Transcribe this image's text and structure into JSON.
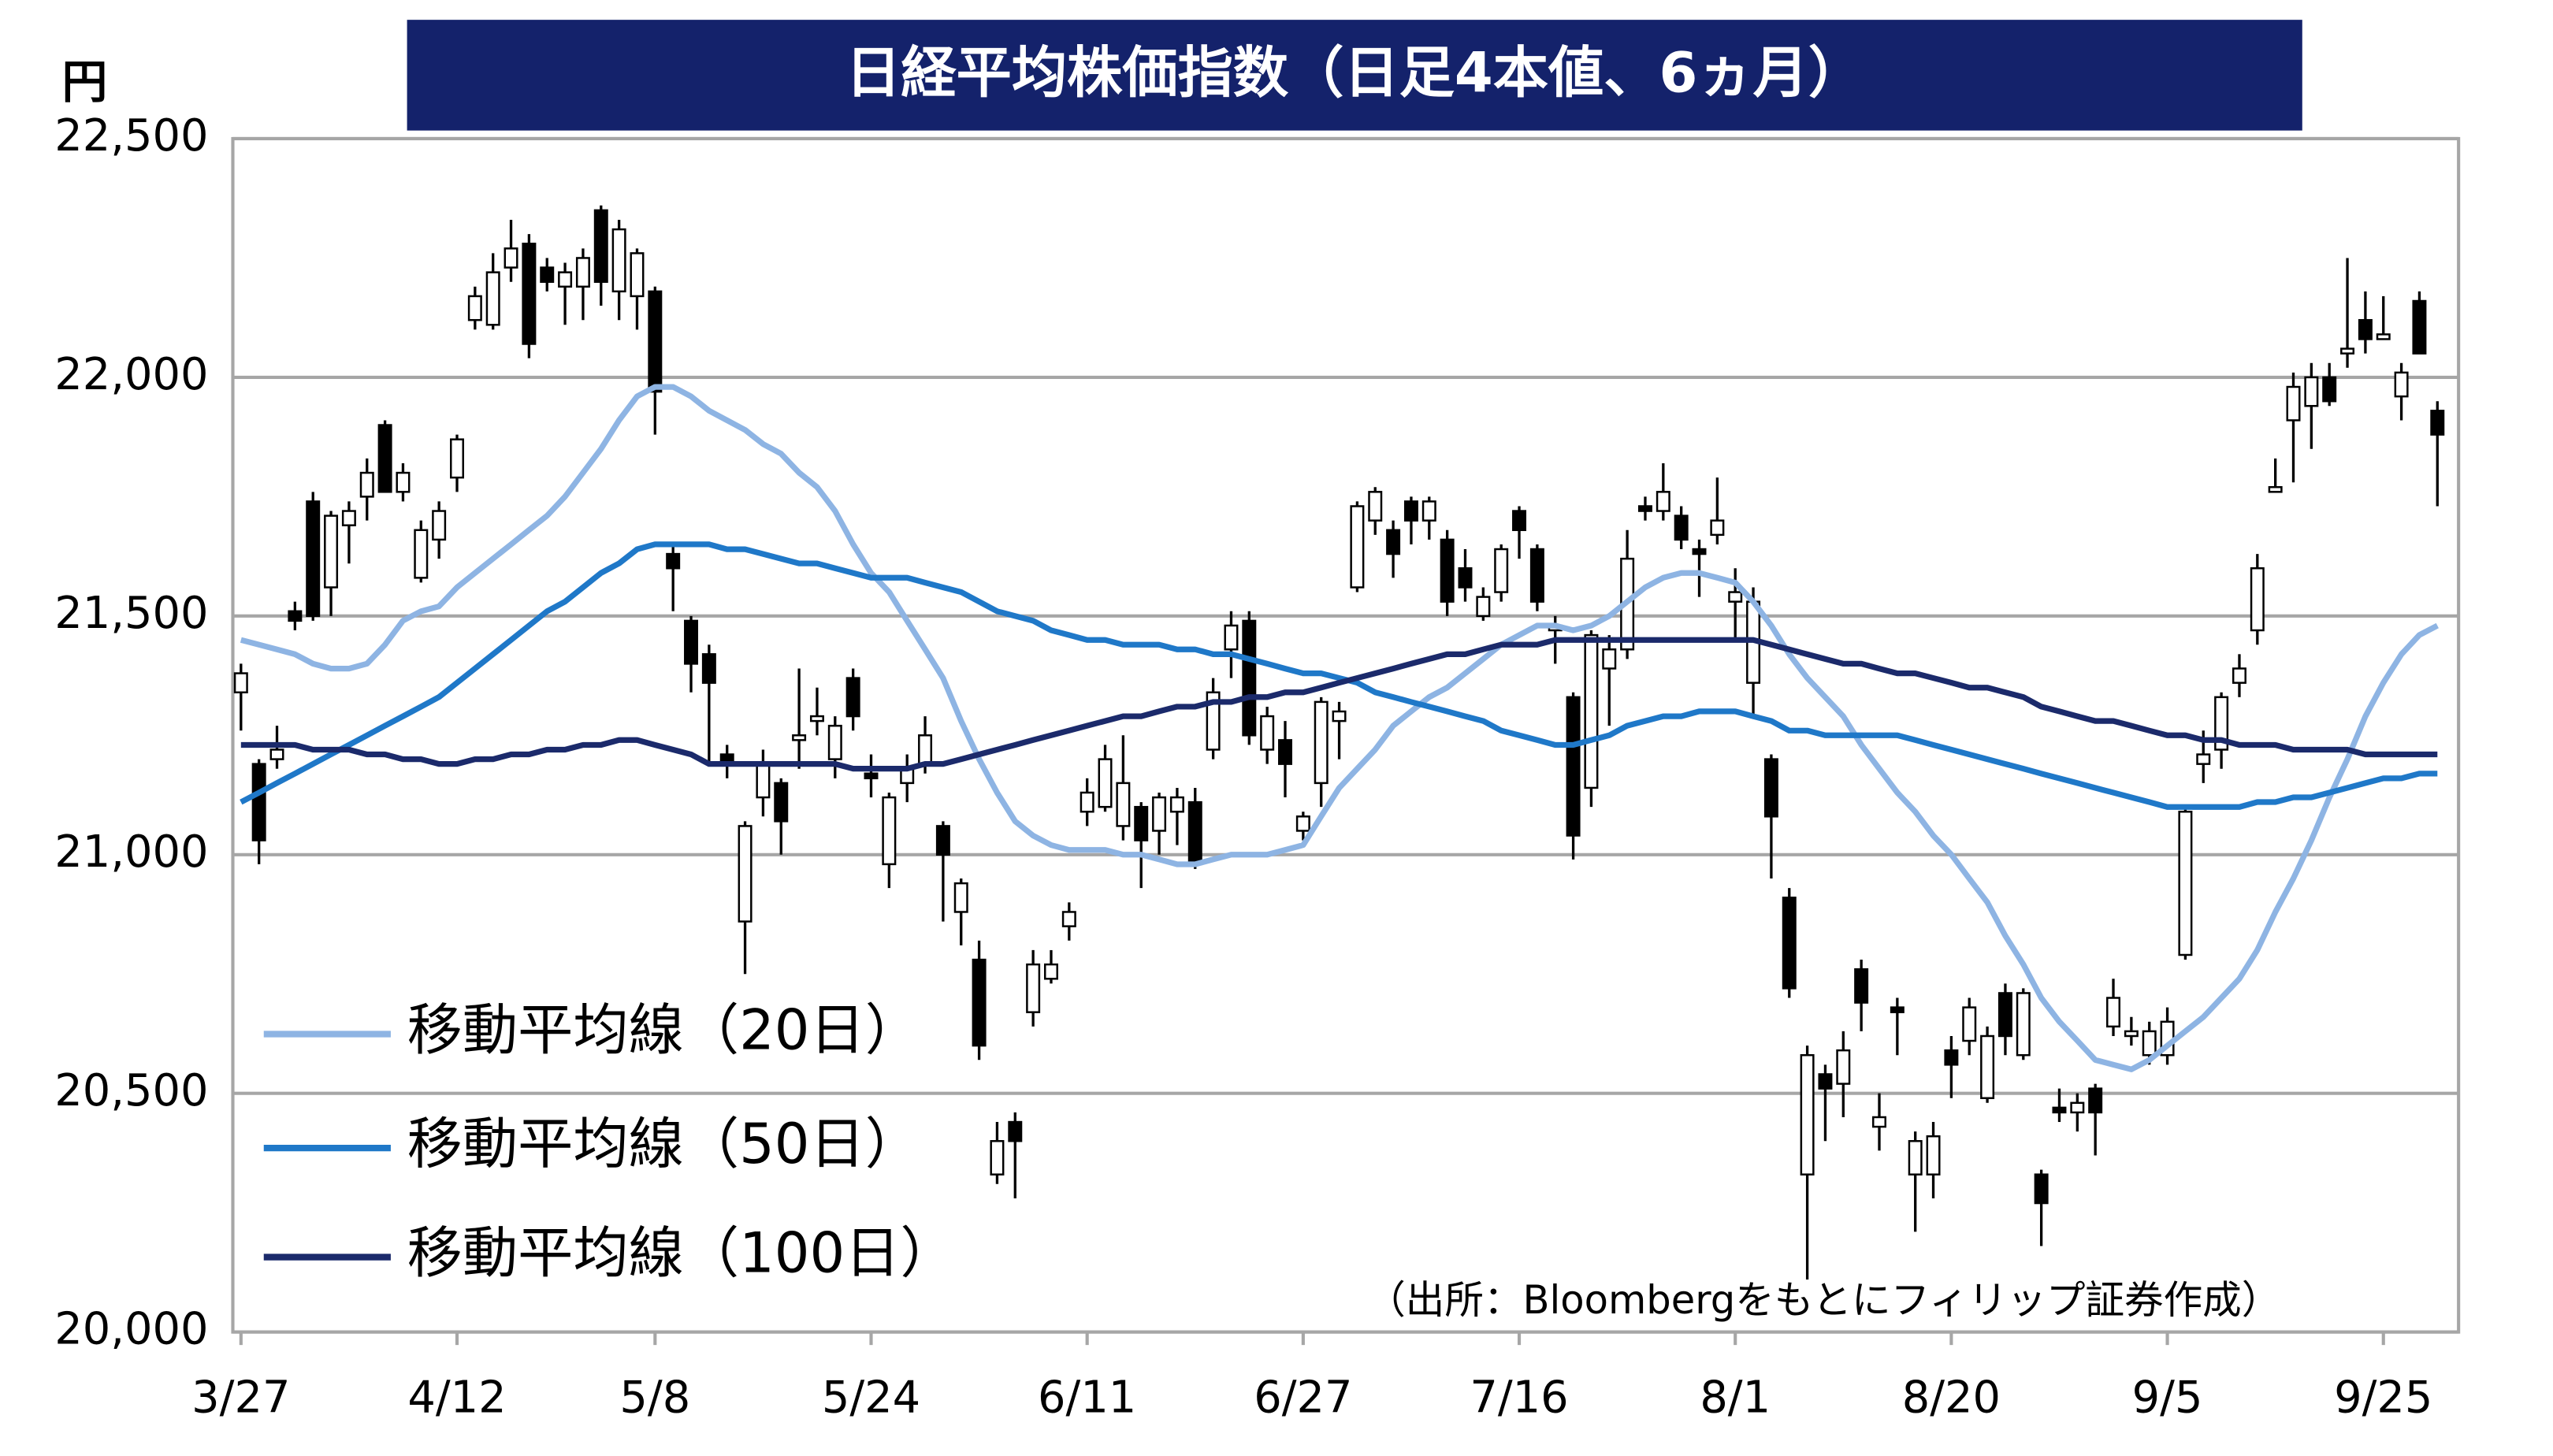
{
  "chart_data": {
    "type": "candlestick",
    "title": "日経平均株価指数（日足4本値、6ヵ月）",
    "y_unit": "円",
    "source": "（出所：Bloombergをもとにフィリップ証券作成）",
    "categories": [
      "3/27",
      null,
      null,
      null,
      null,
      null,
      null,
      null,
      null,
      null,
      null,
      null,
      "4/12",
      null,
      null,
      null,
      null,
      null,
      null,
      null,
      null,
      null,
      null,
      "5/8",
      null,
      null,
      null,
      null,
      null,
      null,
      null,
      null,
      null,
      null,
      null,
      "5/24",
      null,
      null,
      null,
      null,
      null,
      null,
      null,
      null,
      null,
      null,
      null,
      "6/11",
      null,
      null,
      null,
      null,
      null,
      null,
      null,
      null,
      null,
      null,
      null,
      "6/27",
      null,
      null,
      null,
      null,
      null,
      null,
      null,
      null,
      null,
      null,
      null,
      "7/16",
      null,
      null,
      null,
      null,
      null,
      null,
      null,
      null,
      null,
      null,
      null,
      "8/1",
      null,
      null,
      null,
      null,
      null,
      null,
      null,
      null,
      null,
      null,
      null,
      "8/20",
      null,
      null,
      null,
      null,
      null,
      null,
      null,
      null,
      null,
      null,
      null,
      "9/5",
      null,
      null,
      null,
      null,
      null,
      null,
      null,
      null,
      null,
      null,
      null,
      "9/25",
      null,
      null,
      null
    ],
    "open": [
      21340,
      21190,
      21200,
      21510,
      21740,
      21560,
      21690,
      21750,
      21900,
      21760,
      21580,
      21660,
      21790,
      22120,
      22110,
      22230,
      22280,
      22230,
      22190,
      22190,
      22350,
      22180,
      22170,
      22180,
      21630,
      21490,
      21420,
      21210,
      20860,
      21120,
      21150,
      21240,
      21280,
      21200,
      21370,
      21170,
      20980,
      21150,
      21190,
      21060,
      20880,
      20780,
      20330,
      20440,
      20670,
      20740,
      20850,
      21090,
      21100,
      21060,
      21100,
      21050,
      21090,
      21110,
      21220,
      21430,
      21490,
      21220,
      21240,
      21050,
      21150,
      21280,
      21560,
      21700,
      21680,
      21740,
      21700,
      21660,
      21600,
      21500,
      21550,
      21720,
      21640,
      21470,
      21330,
      21140,
      21390,
      21430,
      21730,
      21720,
      21710,
      21640,
      21670,
      21530,
      21360,
      21200,
      20910,
      20330,
      20540,
      20520,
      20760,
      20430,
      20680,
      20330,
      20330,
      20590,
      20610,
      20490,
      20710,
      20580,
      20330,
      20470,
      20460,
      20510,
      20640,
      20620,
      20580,
      20580,
      20790,
      21190,
      21220,
      21360,
      21470,
      21760,
      21910,
      21940,
      22000,
      22050,
      22120,
      22080,
      21960,
      22160,
      21930
    ],
    "high": [
      21400,
      21200,
      21270,
      21530,
      21760,
      21720,
      21740,
      21830,
      21910,
      21820,
      21700,
      21740,
      21880,
      22190,
      22260,
      22330,
      22300,
      22250,
      22240,
      22270,
      22360,
      22330,
      22270,
      22190,
      21650,
      21500,
      21440,
      21230,
      21070,
      21220,
      21160,
      21390,
      21350,
      21290,
      21390,
      21210,
      21130,
      21210,
      21290,
      21070,
      20950,
      20820,
      20440,
      20460,
      20800,
      20800,
      20900,
      21160,
      21230,
      21250,
      21110,
      21130,
      21140,
      21140,
      21370,
      21510,
      21510,
      21310,
      21280,
      21090,
      21330,
      21320,
      21740,
      21770,
      21700,
      21750,
      21750,
      21680,
      21640,
      21560,
      21650,
      21730,
      21650,
      21500,
      21340,
      21470,
      21460,
      21680,
      21750,
      21820,
      21730,
      21660,
      21790,
      21600,
      21560,
      21210,
      20930,
      20600,
      20560,
      20630,
      20780,
      20500,
      20700,
      20420,
      20440,
      20620,
      20700,
      20640,
      20730,
      20720,
      20340,
      20510,
      20500,
      20520,
      20740,
      20660,
      20650,
      20680,
      21100,
      21260,
      21340,
      21420,
      21630,
      21830,
      22010,
      22030,
      22030,
      22250,
      22180,
      22170,
      22030,
      22180,
      21950
    ],
    "low": [
      21260,
      20980,
      21180,
      21470,
      21490,
      21500,
      21610,
      21700,
      21760,
      21740,
      21570,
      21620,
      21760,
      22100,
      22100,
      22200,
      22040,
      22180,
      22110,
      22120,
      22150,
      22120,
      22100,
      21880,
      21510,
      21340,
      21190,
      21160,
      20750,
      21080,
      21000,
      21180,
      21250,
      21160,
      21260,
      21120,
      20930,
      21110,
      21170,
      20860,
      20810,
      20570,
      20310,
      20280,
      20640,
      20730,
      20820,
      21060,
      21090,
      21030,
      20930,
      21000,
      21020,
      20970,
      21200,
      21370,
      21230,
      21190,
      21120,
      21030,
      21100,
      21200,
      21550,
      21670,
      21580,
      21650,
      21660,
      21500,
      21530,
      21490,
      21530,
      21620,
      21510,
      21400,
      20990,
      21100,
      21270,
      21410,
      21700,
      21700,
      21640,
      21540,
      21650,
      21450,
      21290,
      20950,
      20700,
      20110,
      20400,
      20450,
      20630,
      20380,
      20580,
      20210,
      20280,
      20490,
      20580,
      20480,
      20580,
      20570,
      20180,
      20440,
      20420,
      20370,
      20620,
      20600,
      20560,
      20560,
      20780,
      21150,
      21180,
      21330,
      21440,
      21760,
      21780,
      21850,
      21940,
      22020,
      22050,
      22080,
      21910,
      22050,
      21730
    ],
    "close": [
      21380,
      21030,
      21220,
      21490,
      21500,
      21710,
      21720,
      21800,
      21760,
      21800,
      21680,
      21720,
      21870,
      22170,
      22220,
      22270,
      22070,
      22200,
      22220,
      22250,
      22200,
      22310,
      22260,
      21970,
      21600,
      21400,
      21360,
      21190,
      21060,
      21190,
      21070,
      21250,
      21290,
      21270,
      21290,
      21160,
      21120,
      21180,
      21250,
      21000,
      20940,
      20600,
      20400,
      20400,
      20770,
      20770,
      20880,
      21130,
      21200,
      21150,
      21030,
      21120,
      21120,
      20980,
      21340,
      21480,
      21250,
      21290,
      21190,
      21080,
      21320,
      21300,
      21730,
      21760,
      21630,
      21700,
      21740,
      21530,
      21560,
      21540,
      21640,
      21680,
      21530,
      21480,
      21040,
      21460,
      21430,
      21620,
      21720,
      21760,
      21660,
      21630,
      21700,
      21550,
      21530,
      21080,
      20720,
      20580,
      20510,
      20590,
      20690,
      20450,
      20670,
      20400,
      20410,
      20560,
      20680,
      20620,
      20620,
      20710,
      20270,
      20460,
      20480,
      20460,
      20700,
      20630,
      20630,
      20650,
      21090,
      21210,
      21330,
      21390,
      21600,
      21770,
      21980,
      22000,
      21950,
      22060,
      22080,
      22090,
      22010,
      22050,
      21880
    ],
    "up_color": "#ffffff",
    "down_color": "#000000",
    "series": [
      {
        "name": "移動平均線（20日）",
        "color": "#8eb4e3",
        "values": [
          21450,
          21440,
          21430,
          21420,
          21400,
          21390,
          21390,
          21400,
          21440,
          21490,
          21510,
          21520,
          21560,
          21590,
          21620,
          21650,
          21680,
          21710,
          21750,
          21800,
          21850,
          21910,
          21960,
          21980,
          21980,
          21960,
          21930,
          21910,
          21890,
          21860,
          21840,
          21800,
          21770,
          21720,
          21650,
          21590,
          21550,
          21490,
          21430,
          21370,
          21280,
          21200,
          21130,
          21070,
          21040,
          21020,
          21010,
          21010,
          21010,
          21000,
          21000,
          20990,
          20980,
          20980,
          20990,
          21000,
          21000,
          21000,
          21010,
          21020,
          21080,
          21140,
          21180,
          21220,
          21270,
          21300,
          21330,
          21350,
          21380,
          21410,
          21440,
          21460,
          21480,
          21480,
          21470,
          21480,
          21500,
          21530,
          21560,
          21580,
          21590,
          21590,
          21580,
          21570,
          21530,
          21480,
          21420,
          21370,
          21330,
          21290,
          21230,
          21180,
          21130,
          21090,
          21040,
          21000,
          20950,
          20900,
          20830,
          20770,
          20700,
          20650,
          20610,
          20570,
          20560,
          20550,
          20570,
          20600,
          20630,
          20660,
          20700,
          20740,
          20800,
          20880,
          20950,
          21030,
          21120,
          21200,
          21290,
          21360,
          21420,
          21460,
          21480
        ]
      },
      {
        "name": "移動平均線（50日）",
        "color": "#1f78c8",
        "values": [
          21110,
          21130,
          21150,
          21170,
          21190,
          21210,
          21230,
          21250,
          21270,
          21290,
          21310,
          21330,
          21360,
          21390,
          21420,
          21450,
          21480,
          21510,
          21530,
          21560,
          21590,
          21610,
          21640,
          21650,
          21650,
          21650,
          21650,
          21640,
          21640,
          21630,
          21620,
          21610,
          21610,
          21600,
          21590,
          21580,
          21580,
          21580,
          21570,
          21560,
          21550,
          21530,
          21510,
          21500,
          21490,
          21470,
          21460,
          21450,
          21450,
          21440,
          21440,
          21440,
          21430,
          21430,
          21420,
          21420,
          21410,
          21400,
          21390,
          21380,
          21380,
          21370,
          21360,
          21340,
          21330,
          21320,
          21310,
          21300,
          21290,
          21280,
          21260,
          21250,
          21240,
          21230,
          21230,
          21240,
          21250,
          21270,
          21280,
          21290,
          21290,
          21300,
          21300,
          21300,
          21290,
          21280,
          21260,
          21260,
          21250,
          21250,
          21250,
          21250,
          21250,
          21240,
          21230,
          21220,
          21210,
          21200,
          21190,
          21180,
          21170,
          21160,
          21150,
          21140,
          21130,
          21120,
          21110,
          21100,
          21100,
          21100,
          21100,
          21100,
          21110,
          21110,
          21120,
          21120,
          21130,
          21140,
          21150,
          21160,
          21160,
          21170,
          21170
        ]
      },
      {
        "name": "移動平均線（100日）",
        "color": "#1b2a6b",
        "values": [
          21230,
          21230,
          21230,
          21230,
          21220,
          21220,
          21220,
          21210,
          21210,
          21200,
          21200,
          21190,
          21190,
          21200,
          21200,
          21210,
          21210,
          21220,
          21220,
          21230,
          21230,
          21240,
          21240,
          21230,
          21220,
          21210,
          21190,
          21190,
          21190,
          21190,
          21190,
          21190,
          21190,
          21190,
          21180,
          21180,
          21180,
          21180,
          21190,
          21190,
          21200,
          21210,
          21220,
          21230,
          21240,
          21250,
          21260,
          21270,
          21280,
          21290,
          21290,
          21300,
          21310,
          21310,
          21320,
          21320,
          21330,
          21330,
          21340,
          21340,
          21350,
          21360,
          21370,
          21380,
          21390,
          21400,
          21410,
          21420,
          21420,
          21430,
          21440,
          21440,
          21440,
          21450,
          21450,
          21450,
          21450,
          21450,
          21450,
          21450,
          21450,
          21450,
          21450,
          21450,
          21450,
          21440,
          21430,
          21420,
          21410,
          21400,
          21400,
          21390,
          21380,
          21380,
          21370,
          21360,
          21350,
          21350,
          21340,
          21330,
          21310,
          21300,
          21290,
          21280,
          21280,
          21270,
          21260,
          21250,
          21250,
          21240,
          21240,
          21230,
          21230,
          21230,
          21220,
          21220,
          21220,
          21220,
          21210,
          21210,
          21210,
          21210,
          21210
        ]
      }
    ],
    "ylim": [
      20000,
      22500
    ],
    "yticks": [
      {
        "value": 20000,
        "label": "20,000"
      },
      {
        "value": 20500,
        "label": "20,500"
      },
      {
        "value": 21000,
        "label": "21,000"
      },
      {
        "value": 21500,
        "label": "21,500"
      },
      {
        "value": 22000,
        "label": "22,000"
      },
      {
        "value": 22500,
        "label": "22,500"
      }
    ],
    "grid": true,
    "legend": "lower left"
  }
}
